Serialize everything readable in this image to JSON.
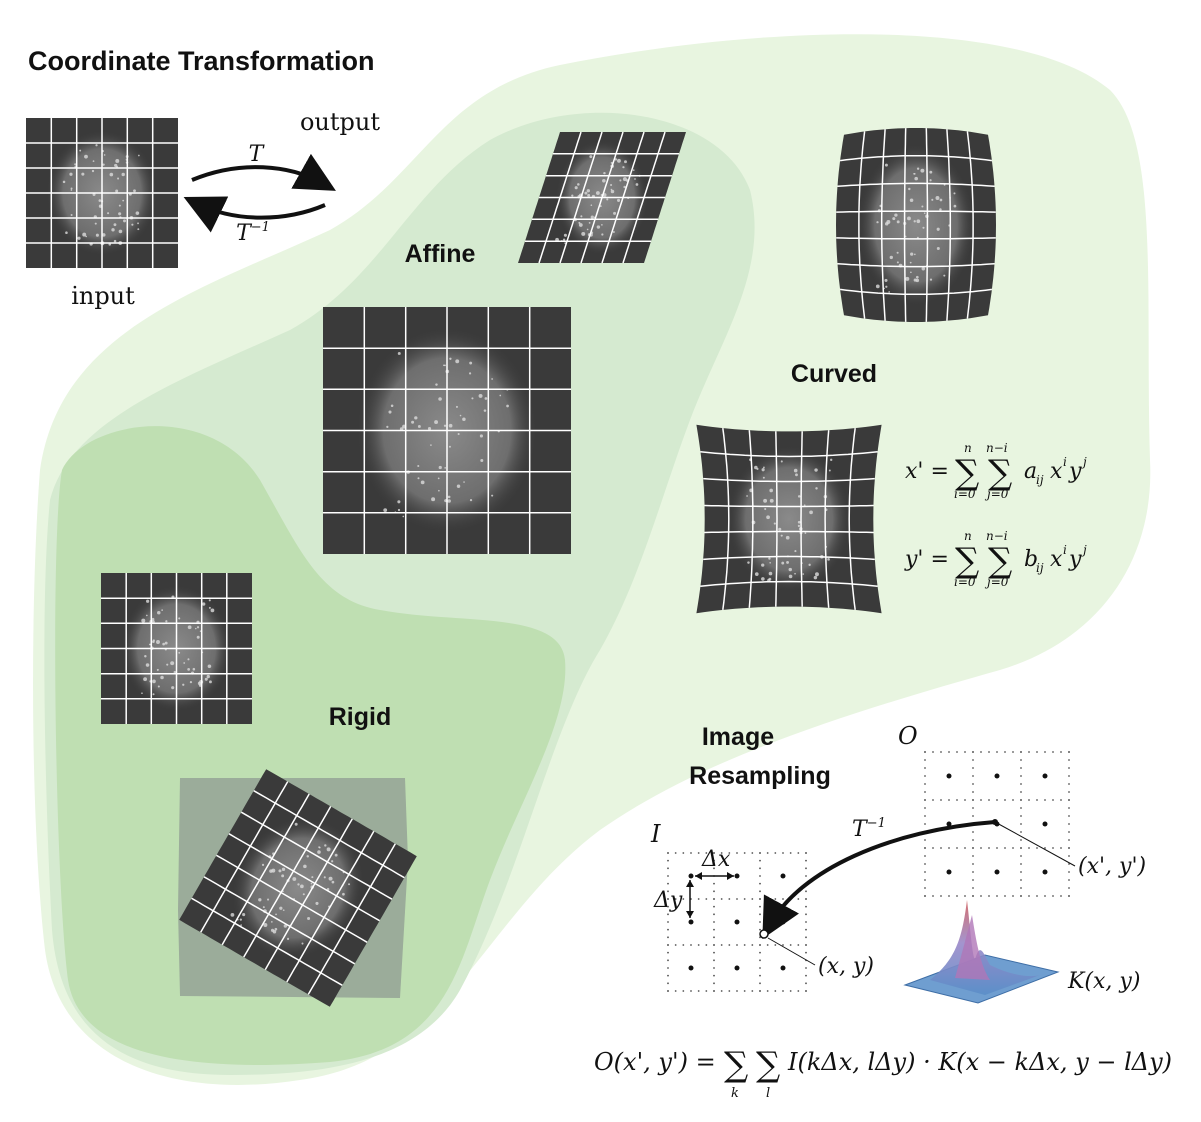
{
  "title": "Coordinate Transformation",
  "labels": {
    "input": "input",
    "output": "output",
    "forward": "T",
    "inverse_base": "T",
    "inverse_sup": "−1",
    "affine": "Affine",
    "rigid": "Rigid",
    "curved": "Curved",
    "resampling_line1": "Image",
    "resampling_line2": "Resampling"
  },
  "equations": {
    "x_eq": "x' = Σ(i=0..n) Σ(j=0..n−i) a_ij x^i y^j",
    "x_lhs": "x' =",
    "x_coef": "a",
    "x_sub": "ij",
    "y_eq": "y' = Σ(i=0..n) Σ(j=0..n−i) b_ij x^i y^j",
    "y_lhs": "y' =",
    "y_coef": "b",
    "y_sub": "ij",
    "sum_top_outer": "n",
    "sum_top_inner": "n−i",
    "sum_bot_outer": "i=0",
    "sum_bot_inner": "j=0",
    "pow_x": "i",
    "pow_y": "j",
    "var_x": "x",
    "var_y": "y",
    "sigma": "∑",
    "resampling_eq": "O(x', y') = ∑ ∑ I(kΔx, lΔy) · K(x − kΔx, y − lΔy)",
    "resampling_lhs": "O(x', y') =",
    "resampling_rhs": "I(kΔx, lΔy) · K(x − kΔx, y − lΔy)",
    "sum_k": "k",
    "sum_l": "l"
  },
  "resampling": {
    "input_grid": "I",
    "output_grid": "O",
    "dx": "Δx",
    "dy": "Δy",
    "inverse_base": "T",
    "inverse_sup": "−1",
    "point_out": "(x', y')",
    "point_in": "(x, y)",
    "kernel": "K(x, y)"
  },
  "colors": {
    "outer_region": "#e8f5e0",
    "affine_region": "#d5ead0",
    "rigid_region": "#bfdfb2",
    "image_bg": "#3a3a3a",
    "grid_line": "#ffffff"
  }
}
